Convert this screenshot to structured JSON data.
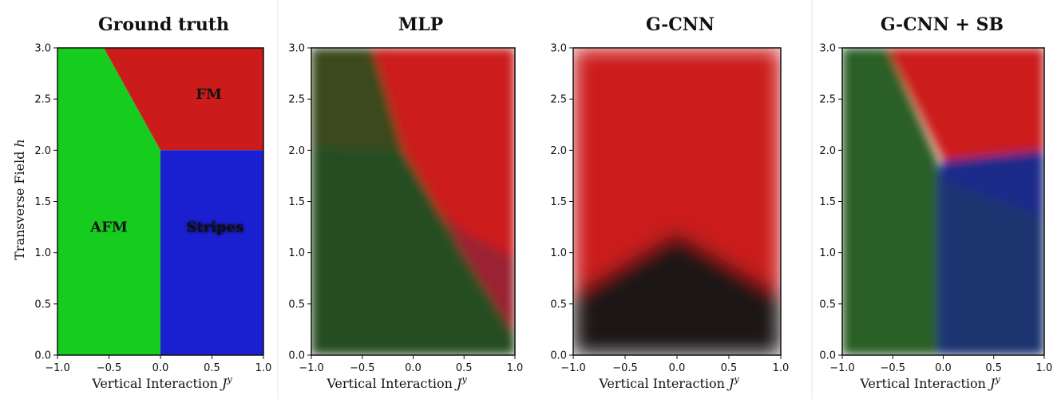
{
  "chart_data": [
    {
      "type": "heatmap",
      "title": "Ground truth",
      "xlabel": "Vertical Interaction",
      "xlabel_symbol": "J",
      "xlabel_sup": "y",
      "ylabel": "Transverse Field",
      "ylabel_symbol": "h",
      "xlim": [
        -1.0,
        1.0
      ],
      "ylim": [
        0.0,
        3.0
      ],
      "xticks": [
        "−1.0",
        "−0.5",
        "0.0",
        "0.5",
        "1.0"
      ],
      "yticks": [
        "0.0",
        "0.5",
        "1.0",
        "1.5",
        "2.0",
        "2.5",
        "3.0"
      ],
      "regions": [
        {
          "name": "AFM",
          "color": "#16cc1f",
          "polygon": [
            [
              -1,
              0
            ],
            [
              0,
              0
            ],
            [
              0,
              2
            ],
            [
              -0.55,
              3
            ],
            [
              -1,
              3
            ]
          ],
          "label_pos": [
            -0.5,
            1.25
          ]
        },
        {
          "name": "FM",
          "color": "#cc1b1b",
          "polygon": [
            [
              -0.55,
              3
            ],
            [
              1,
              3
            ],
            [
              1,
              2
            ],
            [
              0,
              2
            ]
          ],
          "label_pos": [
            0.47,
            2.55
          ]
        },
        {
          "name": "Stripes",
          "color": "#1a1fd0",
          "polygon": [
            [
              0,
              0
            ],
            [
              1,
              0
            ],
            [
              1,
              2
            ],
            [
              0,
              2
            ]
          ],
          "label_pos": [
            0.53,
            1.25
          ]
        }
      ]
    },
    {
      "type": "heatmap",
      "title": "MLP",
      "xlabel": "Vertical Interaction",
      "xlabel_symbol": "J",
      "xlabel_sup": "y",
      "xlim": [
        -1.0,
        1.0
      ],
      "ylim": [
        0.0,
        3.0
      ],
      "xticks": [
        "−1.0",
        "−0.5",
        "0.0",
        "0.5",
        "1.0"
      ],
      "yticks": [
        "0.0",
        "0.5",
        "1.0",
        "1.5",
        "2.0",
        "2.5",
        "3.0"
      ],
      "regions": [
        {
          "name": "red",
          "color": "#cc1b1b",
          "polygon": [
            [
              -0.4,
              3
            ],
            [
              1,
              3
            ],
            [
              1,
              0
            ],
            [
              -0.1,
              2.0
            ]
          ]
        },
        {
          "name": "olive",
          "color": "#3b4a1e",
          "polygon": [
            [
              -1,
              2.05
            ],
            [
              -0.1,
              2.0
            ],
            [
              -0.4,
              3
            ],
            [
              -1,
              3
            ]
          ]
        },
        {
          "name": "green",
          "color": "#254d24",
          "polygon": [
            [
              -1,
              0
            ],
            [
              1,
              0
            ],
            [
              1,
              0.2
            ],
            [
              0.5,
              1.0
            ],
            [
              -0.1,
              2.0
            ],
            [
              -1,
              2.05
            ]
          ]
        },
        {
          "name": "maroon",
          "color": "#9b2433",
          "polygon": [
            [
              1,
              0.2
            ],
            [
              1,
              0.95
            ],
            [
              0.5,
              1.2
            ],
            [
              0.3,
              1.4
            ],
            [
              0.45,
              1.05
            ]
          ]
        }
      ]
    },
    {
      "type": "heatmap",
      "title": "G-CNN",
      "xlabel": "Vertical Interaction",
      "xlabel_symbol": "J",
      "xlabel_sup": "y",
      "xlim": [
        -1.0,
        1.0
      ],
      "ylim": [
        0.0,
        3.0
      ],
      "xticks": [
        "−1.0",
        "−0.5",
        "0.0",
        "0.5",
        "1.0"
      ],
      "yticks": [
        "0.0",
        "0.5",
        "1.0",
        "1.5",
        "2.0",
        "2.5",
        "3.0"
      ],
      "regions": [
        {
          "name": "red",
          "color": "#cc1b1b",
          "polygon": [
            [
              -1,
              3
            ],
            [
              1,
              3
            ],
            [
              1,
              0
            ],
            [
              -1,
              0
            ]
          ]
        },
        {
          "name": "dark",
          "color": "#1a1616",
          "polygon": [
            [
              -1,
              0
            ],
            [
              1,
              0
            ],
            [
              1,
              0.6
            ],
            [
              0,
              1.2
            ],
            [
              -1,
              0.6
            ]
          ]
        }
      ]
    },
    {
      "type": "heatmap",
      "title": "G-CNN + SB",
      "xlabel": "Vertical Interaction",
      "xlabel_symbol": "J",
      "xlabel_sup": "y",
      "xlim": [
        -1.0,
        1.0
      ],
      "ylim": [
        0.0,
        3.0
      ],
      "xticks": [
        "−1.0",
        "−0.5",
        "0.0",
        "0.5",
        "1.0"
      ],
      "yticks": [
        "0.0",
        "0.5",
        "1.0",
        "1.5",
        "2.0",
        "2.5",
        "3.0"
      ],
      "regions": [
        {
          "name": "green",
          "color": "#2a5f27",
          "polygon": [
            [
              -1,
              0
            ],
            [
              -0.05,
              0
            ],
            [
              -0.05,
              1.9
            ],
            [
              -0.55,
              3
            ],
            [
              -1,
              3
            ]
          ]
        },
        {
          "name": "red",
          "color": "#cc1b1b",
          "polygon": [
            [
              -0.55,
              3
            ],
            [
              1,
              3
            ],
            [
              1,
              2.0
            ],
            [
              0,
              1.9
            ]
          ]
        },
        {
          "name": "blue",
          "color": "#1d2a8a",
          "polygon": [
            [
              -0.05,
              0
            ],
            [
              1,
              0
            ],
            [
              1,
              2.0
            ],
            [
              0,
              1.9
            ],
            [
              -0.05,
              1.8
            ]
          ]
        },
        {
          "name": "blue-lower",
          "color": "#1f3570",
          "polygon": [
            [
              0,
              0
            ],
            [
              1,
              0
            ],
            [
              1,
              1.35
            ],
            [
              0,
              1.7
            ]
          ]
        }
      ]
    }
  ]
}
